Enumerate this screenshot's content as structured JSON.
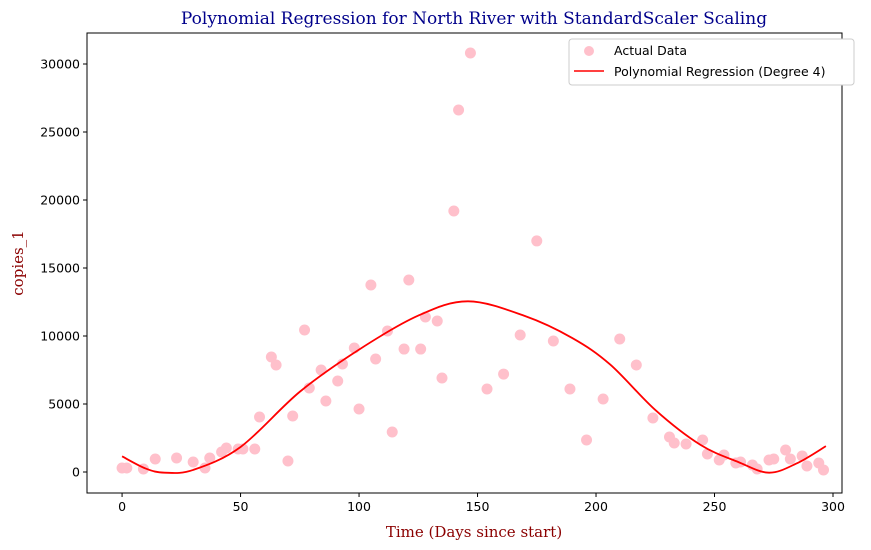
{
  "chart_data": {
    "type": "scatter",
    "title": "Polynomial Regression for North River with StandardScaler Scaling",
    "xlabel": "Time (Days since start)",
    "ylabel": "copies_1",
    "xlim": [
      -14.8,
      303.8
    ],
    "ylim": [
      -1545,
      32280
    ],
    "xticks": [
      0,
      50,
      100,
      150,
      200,
      250,
      300
    ],
    "yticks": [
      0,
      5000,
      10000,
      15000,
      20000,
      25000,
      30000
    ],
    "grid": false,
    "legend_position": "top-right",
    "series": [
      {
        "name": "Actual Data",
        "type": "scatter",
        "color": "#ffc0cb",
        "x": [
          0,
          2,
          9,
          14,
          23,
          30,
          35,
          37,
          42,
          44,
          49,
          51,
          56,
          58,
          63,
          65,
          70,
          72,
          77,
          79,
          84,
          86,
          91,
          93,
          98,
          100,
          105,
          107,
          112,
          114,
          119,
          121,
          126,
          128,
          133,
          135,
          140,
          142,
          147,
          154,
          161,
          168,
          175,
          182,
          189,
          196,
          203,
          210,
          217,
          224,
          231,
          233,
          238,
          245,
          247,
          252,
          254,
          259,
          261,
          266,
          268,
          273,
          275,
          280,
          282,
          287,
          289,
          294,
          296
        ],
        "y": [
          294,
          294,
          220,
          955,
          1030,
          735,
          294,
          1030,
          1470,
          1765,
          1690,
          1690,
          1690,
          4040,
          8455,
          7870,
          810,
          4120,
          10440,
          6180,
          7500,
          5220,
          6690,
          7940,
          9120,
          4630,
          13750,
          8310,
          10370,
          2940,
          9040,
          14120,
          9040,
          11400,
          11100,
          6910,
          19190,
          26620,
          30810,
          6100,
          7200,
          10070,
          16990,
          9630,
          6100,
          2350,
          5370,
          9780,
          7870,
          3970,
          2570,
          2130,
          2060,
          2350,
          1320,
          880,
          1250,
          660,
          735,
          510,
          220,
          880,
          955,
          1620,
          955,
          1180,
          440,
          660,
          150
        ]
      },
      {
        "name": "Polynomial Regression (Degree 4)",
        "type": "line",
        "color": "#ff0000",
        "x": [
          0,
          10,
          18,
          30,
          50,
          75,
          100,
          125,
          146,
          170,
          190,
          206,
          225,
          244,
          260,
          273,
          285,
          297
        ],
        "y": [
          1150,
          250,
          -50,
          150,
          1840,
          5900,
          9000,
          11500,
          12550,
          11470,
          9850,
          7900,
          4560,
          2000,
          735,
          -50,
          660,
          1900
        ]
      }
    ]
  }
}
